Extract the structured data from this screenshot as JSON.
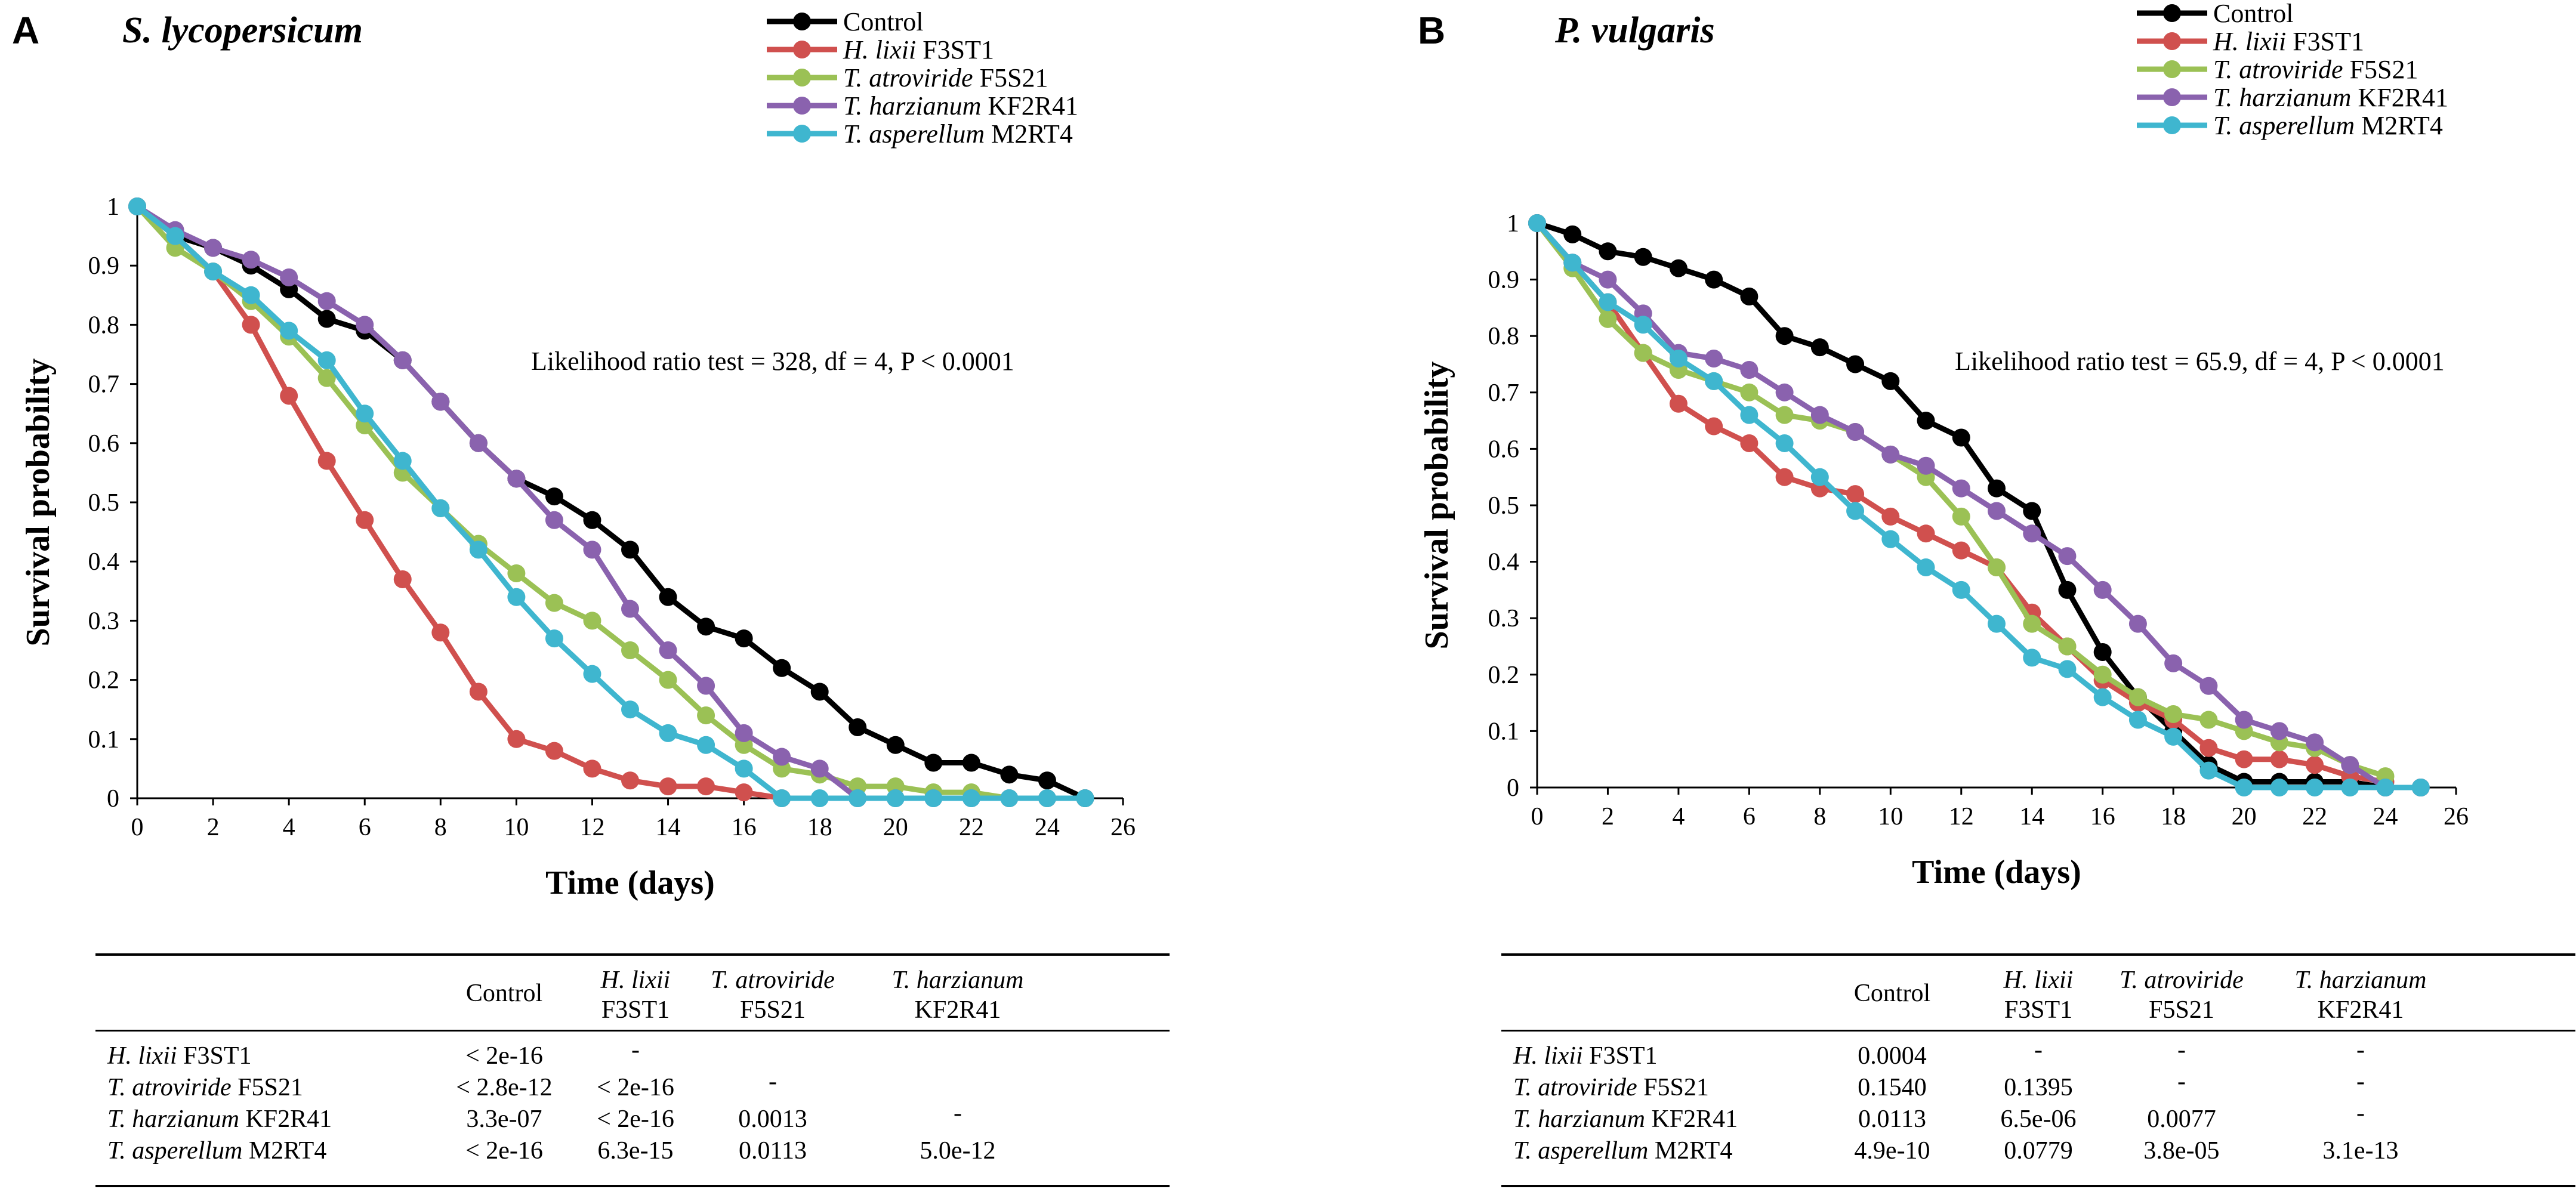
{
  "chart_data": [
    {
      "panel": "A",
      "type": "line",
      "title": "S. lycopersicum",
      "xlabel": "Time (days)",
      "ylabel": "Survival probability",
      "xlim": [
        0,
        26
      ],
      "ylim": [
        0,
        1
      ],
      "xticks": [
        "0",
        "2",
        "4",
        "6",
        "8",
        "10",
        "12",
        "14",
        "16",
        "18",
        "20",
        "22",
        "24",
        "26"
      ],
      "yticks": [
        "0",
        "0.1",
        "0.2",
        "0.3",
        "0.4",
        "0.5",
        "0.6",
        "0.7",
        "0.8",
        "0.9",
        "1"
      ],
      "annotation": "Likelihood ratio test = 328, df = 4, P < 0.0001",
      "legend_position": "top-right",
      "series": [
        {
          "name": "Control",
          "italic": "",
          "rest": "Control",
          "color": "#000000",
          "x": [
            0,
            1,
            2,
            3,
            4,
            5,
            6,
            7,
            8,
            9,
            10,
            11,
            12,
            13,
            14,
            15,
            16,
            17,
            18,
            19,
            20,
            21,
            22,
            23,
            24,
            25
          ],
          "values": [
            1,
            0.95,
            0.93,
            0.9,
            0.86,
            0.81,
            0.79,
            0.74,
            0.67,
            0.6,
            0.54,
            0.51,
            0.47,
            0.42,
            0.34,
            0.29,
            0.27,
            0.22,
            0.18,
            0.12,
            0.09,
            0.06,
            0.06,
            0.04,
            0.03,
            0
          ]
        },
        {
          "name": "H. lixii F3ST1",
          "italic": "H. lixii",
          "rest": " F3ST1",
          "color": "#d0504e",
          "x": [
            0,
            1,
            2,
            3,
            4,
            5,
            6,
            7,
            8,
            9,
            10,
            11,
            12,
            13,
            14,
            15,
            16,
            17
          ],
          "values": [
            1,
            0.95,
            0.89,
            0.8,
            0.68,
            0.57,
            0.47,
            0.37,
            0.28,
            0.18,
            0.1,
            0.08,
            0.05,
            0.03,
            0.02,
            0.02,
            0.01,
            0
          ]
        },
        {
          "name": "T. atroviride F5S21",
          "italic": "T. atroviride",
          "rest": " F5S21",
          "color": "#9bc155",
          "x": [
            0,
            1,
            2,
            3,
            4,
            5,
            6,
            7,
            8,
            9,
            10,
            11,
            12,
            13,
            14,
            15,
            16,
            17,
            18,
            19,
            20,
            21,
            22,
            23,
            24
          ],
          "values": [
            1,
            0.93,
            0.89,
            0.84,
            0.78,
            0.71,
            0.63,
            0.55,
            0.49,
            0.43,
            0.38,
            0.33,
            0.3,
            0.25,
            0.2,
            0.14,
            0.09,
            0.05,
            0.04,
            0.02,
            0.02,
            0.01,
            0.01,
            0,
            0
          ]
        },
        {
          "name": "T. harzianum KF2R41",
          "italic": "T. harzianum",
          "rest": " KF2R41",
          "color": "#8a62ae",
          "x": [
            0,
            1,
            2,
            3,
            4,
            5,
            6,
            7,
            8,
            9,
            10,
            11,
            12,
            13,
            14,
            15,
            16,
            17,
            18,
            19,
            20,
            21,
            22,
            23,
            24
          ],
          "values": [
            1,
            0.96,
            0.93,
            0.91,
            0.88,
            0.84,
            0.8,
            0.74,
            0.67,
            0.6,
            0.54,
            0.47,
            0.42,
            0.32,
            0.25,
            0.19,
            0.11,
            0.07,
            0.05,
            0,
            0,
            0,
            0,
            0,
            0
          ]
        },
        {
          "name": "T. asperellum M2RT4",
          "italic": "T. asperellum",
          "rest": " M2RT4",
          "color": "#3fb6cf",
          "x": [
            0,
            1,
            2,
            3,
            4,
            5,
            6,
            7,
            8,
            9,
            10,
            11,
            12,
            13,
            14,
            15,
            16,
            17,
            18,
            19,
            20,
            21,
            22,
            23,
            24,
            25
          ],
          "values": [
            1,
            0.95,
            0.89,
            0.85,
            0.79,
            0.74,
            0.65,
            0.57,
            0.49,
            0.42,
            0.34,
            0.27,
            0.21,
            0.15,
            0.11,
            0.09,
            0.05,
            0,
            0,
            0,
            0,
            0,
            0,
            0,
            0,
            0
          ]
        }
      ],
      "pvalue_table": {
        "columns": [
          {
            "italic": "",
            "rest": "Control"
          },
          {
            "italic": "H. lixii",
            "rest": "F3ST1"
          },
          {
            "italic": "T. atroviride",
            "rest": "F5S21"
          },
          {
            "italic": "T. harzianum",
            "rest": "KF2R41"
          }
        ],
        "rows": [
          {
            "italic": "H. lixii",
            "rest": " F3ST1",
            "cells": [
              "< 2e-16",
              "-",
              "",
              ""
            ]
          },
          {
            "italic": "T. atroviride",
            "rest": " F5S21",
            "cells": [
              "< 2.8e-12",
              "< 2e-16",
              "-",
              ""
            ]
          },
          {
            "italic": "T. harzianum",
            "rest": " KF2R41",
            "cells": [
              "3.3e-07",
              "< 2e-16",
              "0.0013",
              "-"
            ]
          },
          {
            "italic": "T. asperellum",
            "rest": " M2RT4",
            "cells": [
              "< 2e-16",
              "6.3e-15",
              "0.0113",
              "5.0e-12"
            ]
          }
        ]
      }
    },
    {
      "panel": "B",
      "type": "line",
      "title": "P. vulgaris",
      "xlabel": "Time (days)",
      "ylabel": "Survival probability",
      "xlim": [
        0,
        26
      ],
      "ylim": [
        0,
        1
      ],
      "xticks": [
        "0",
        "2",
        "4",
        "6",
        "8",
        "10",
        "12",
        "14",
        "16",
        "18",
        "20",
        "22",
        "24",
        "26"
      ],
      "yticks": [
        "0",
        "0.1",
        "0.2",
        "0.3",
        "0.4",
        "0.5",
        "0.6",
        "0.7",
        "0.8",
        "0.9",
        "1"
      ],
      "annotation": "Likelihood ratio test = 65.9, df = 4, P < 0.0001",
      "legend_position": "top-right",
      "series": [
        {
          "name": "Control",
          "italic": "",
          "rest": "Control",
          "color": "#000000",
          "x": [
            0,
            1,
            2,
            3,
            4,
            5,
            6,
            7,
            8,
            9,
            10,
            11,
            12,
            13,
            14,
            15,
            16,
            17,
            18,
            19,
            20,
            21,
            22,
            23,
            24,
            25
          ],
          "values": [
            1,
            0.98,
            0.95,
            0.94,
            0.92,
            0.9,
            0.87,
            0.8,
            0.78,
            0.75,
            0.72,
            0.65,
            0.62,
            0.53,
            0.49,
            0.35,
            0.24,
            0.16,
            0.1,
            0.04,
            0.01,
            0.01,
            0.01,
            0.01,
            0,
            0
          ]
        },
        {
          "name": "H. lixii F3ST1",
          "italic": "H. lixii",
          "rest": " F3ST1",
          "color": "#d0504e",
          "x": [
            0,
            1,
            2,
            3,
            4,
            5,
            6,
            7,
            8,
            9,
            10,
            11,
            12,
            13,
            14,
            15,
            16,
            17,
            18,
            19,
            20,
            21,
            22,
            23,
            24
          ],
          "values": [
            1,
            0.93,
            0.86,
            0.77,
            0.68,
            0.64,
            0.61,
            0.55,
            0.53,
            0.52,
            0.48,
            0.45,
            0.42,
            0.39,
            0.31,
            0.25,
            0.19,
            0.15,
            0.12,
            0.07,
            0.05,
            0.05,
            0.04,
            0.02,
            0.01
          ]
        },
        {
          "name": "T. atroviride F5S21",
          "italic": "T. atroviride",
          "rest": " F5S21",
          "color": "#9bc155",
          "x": [
            0,
            1,
            2,
            3,
            4,
            5,
            6,
            7,
            8,
            9,
            10,
            11,
            12,
            13,
            14,
            15,
            16,
            17,
            18,
            19,
            20,
            21,
            22,
            23,
            24
          ],
          "values": [
            1,
            0.92,
            0.83,
            0.77,
            0.74,
            0.72,
            0.7,
            0.66,
            0.65,
            0.63,
            0.59,
            0.55,
            0.48,
            0.39,
            0.29,
            0.25,
            0.2,
            0.16,
            0.13,
            0.12,
            0.1,
            0.08,
            0.07,
            0.04,
            0.02
          ]
        },
        {
          "name": "T. harzianum KF2R41",
          "italic": "T. harzianum",
          "rest": " KF2R41",
          "color": "#8a62ae",
          "x": [
            0,
            1,
            2,
            3,
            4,
            5,
            6,
            7,
            8,
            9,
            10,
            11,
            12,
            13,
            14,
            15,
            16,
            17,
            18,
            19,
            20,
            21,
            22,
            23,
            24,
            25
          ],
          "values": [
            1,
            0.93,
            0.9,
            0.84,
            0.77,
            0.76,
            0.74,
            0.7,
            0.66,
            0.63,
            0.59,
            0.57,
            0.53,
            0.49,
            0.45,
            0.41,
            0.35,
            0.29,
            0.22,
            0.18,
            0.12,
            0.1,
            0.08,
            0.04,
            0,
            0
          ]
        },
        {
          "name": "T. asperellum M2RT4",
          "italic": "T. asperellum",
          "rest": " M2RT4",
          "color": "#3fb6cf",
          "x": [
            0,
            1,
            2,
            3,
            4,
            5,
            6,
            7,
            8,
            9,
            10,
            11,
            12,
            13,
            14,
            15,
            16,
            17,
            18,
            19,
            20,
            21,
            22,
            23,
            24,
            25
          ],
          "values": [
            1,
            0.93,
            0.86,
            0.82,
            0.76,
            0.72,
            0.66,
            0.61,
            0.55,
            0.49,
            0.44,
            0.39,
            0.35,
            0.29,
            0.23,
            0.21,
            0.16,
            0.12,
            0.09,
            0.03,
            0,
            0,
            0,
            0,
            0,
            0
          ]
        }
      ],
      "pvalue_table": {
        "columns": [
          {
            "italic": "",
            "rest": "Control"
          },
          {
            "italic": "H. lixii",
            "rest": "F3ST1"
          },
          {
            "italic": "T. atroviride",
            "rest": "F5S21"
          },
          {
            "italic": "T. harzianum",
            "rest": "KF2R41"
          }
        ],
        "rows": [
          {
            "italic": "H. lixii",
            "rest": " F3ST1",
            "cells": [
              "0.0004",
              "-",
              "-",
              "-"
            ]
          },
          {
            "italic": "T. atroviride",
            "rest": " F5S21",
            "cells": [
              "0.1540",
              "0.1395",
              "-",
              "-"
            ]
          },
          {
            "italic": "T. harzianum",
            "rest": " KF2R41",
            "cells": [
              "0.0113",
              "6.5e-06",
              "0.0077",
              "-"
            ]
          },
          {
            "italic": "T. asperellum",
            "rest": " M2RT4",
            "cells": [
              "4.9e-10",
              "0.0779",
              "3.8e-05",
              "3.1e-13"
            ]
          }
        ]
      }
    }
  ]
}
